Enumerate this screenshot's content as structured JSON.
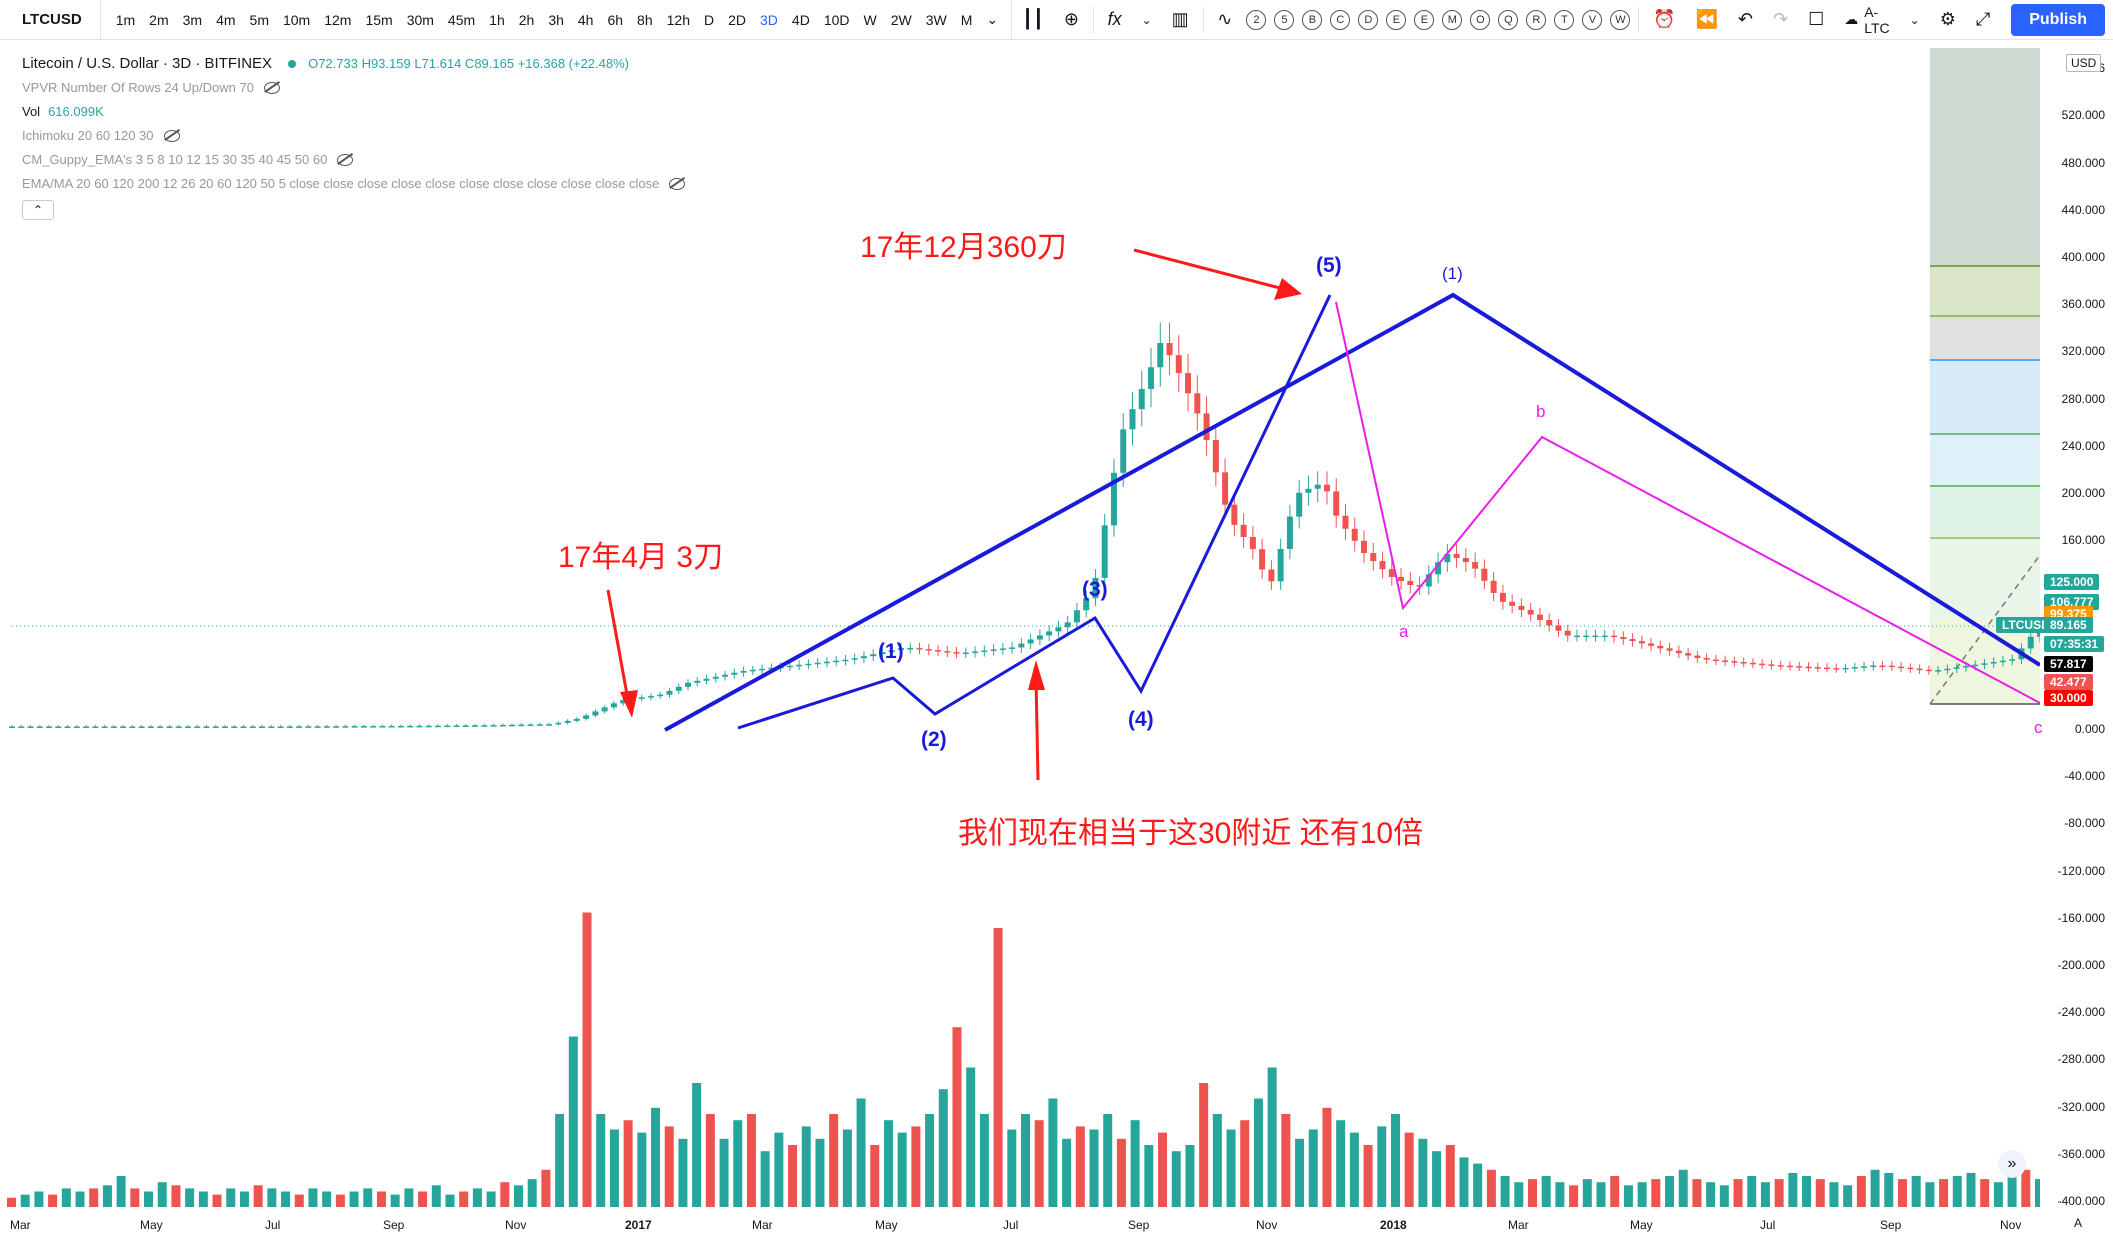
{
  "toolbar": {
    "symbol": "LTCUSD",
    "timeframes": [
      "1m",
      "2m",
      "3m",
      "4m",
      "5m",
      "10m",
      "12m",
      "15m",
      "30m",
      "45m",
      "1h",
      "2h",
      "3h",
      "4h",
      "6h",
      "8h",
      "12h",
      "D",
      "2D",
      "3D",
      "4D",
      "10D",
      "W",
      "2W",
      "3W",
      "M"
    ],
    "active_timeframe": "3D",
    "circle_letters": [
      "2",
      "5",
      "B",
      "C",
      "D",
      "E",
      "E",
      "M",
      "O",
      "Q",
      "R",
      "T",
      "V",
      "W"
    ],
    "layout_name": "A-LTC",
    "publish_label": "Publish"
  },
  "legend": {
    "title": "Litecoin / U.S. Dollar · 3D · BITFINEX",
    "ohlc": "O72.733 H93.159 L71.614 C89.165 +16.368 (+22.48%)",
    "vpvr": "VPVR Number Of Rows 24 Up/Down 70",
    "vol_label": "Vol",
    "vol_value": "616.099K",
    "ichimoku": "Ichimoku 20 60 120 30",
    "guppy": "CM_Guppy_EMA's 3 5 8 10 12 15 30 35 40 45 50 60",
    "ema": "EMA/MA 20 60 120 200 12 26 20 60 120 50 5 close close close close close close close close close close close",
    "collapse_icon": "chevron-up-icon"
  },
  "price_axis": {
    "currency": "USD",
    "top_partial": "56",
    "ticks": [
      "520.000",
      "480.000",
      "440.000",
      "400.000",
      "360.000",
      "320.000",
      "280.000",
      "240.000",
      "200.000",
      "160.000",
      "0.000",
      "-40.000",
      "-80.000",
      "-120.000",
      "-160.000",
      "-200.000",
      "-240.000",
      "-280.000",
      "-320.000",
      "-360.000",
      "-400.000"
    ],
    "labels": [
      {
        "text": "125.000",
        "color": "#26a69a"
      },
      {
        "text": "106.777",
        "color": "#26a69a"
      },
      {
        "text": "99.375",
        "color": "#ff9800"
      },
      {
        "text": "LTCUSD",
        "color": "#26a69a"
      },
      {
        "text": "89.165",
        "color": "#26a69a"
      },
      {
        "text": "07:35:31",
        "color": "#26a69a"
      },
      {
        "text": "57.817",
        "color": "#000000"
      },
      {
        "text": "42.477",
        "color": "#ef5350"
      },
      {
        "text": "30.000",
        "color": "#ff0000"
      }
    ]
  },
  "time_axis": {
    "ticks": [
      "Mar",
      "May",
      "Jul",
      "Sep",
      "Nov",
      "2017",
      "Mar",
      "May",
      "Jul",
      "Sep",
      "Nov",
      "2018",
      "Mar",
      "May",
      "Jul",
      "Sep",
      "Nov"
    ],
    "scroll_icon": "chevron-right-double-icon"
  },
  "annotations": {
    "dec_2017": "17年12月360刀",
    "apr_2017": "17年4月 3刀",
    "now_note": "我们现在相当于这30附近 还有10倍"
  },
  "waves": {
    "big": [
      "(1)",
      "(2)",
      "(3)",
      "(4)",
      "(5)"
    ],
    "top": "(1)",
    "abc": [
      "a",
      "b",
      "c"
    ]
  },
  "chart_data": {
    "type": "candlestick",
    "ylim": [
      -400,
      560
    ],
    "series_color_up": "#26a69a",
    "series_color_down": "#ef5350",
    "price_path": [
      [
        0,
        3
      ],
      [
        20,
        3
      ],
      [
        30,
        3.5
      ],
      [
        35,
        4
      ],
      [
        40,
        5
      ],
      [
        42,
        10
      ],
      [
        45,
        25
      ],
      [
        48,
        30
      ],
      [
        50,
        40
      ],
      [
        52,
        45
      ],
      [
        54,
        50
      ],
      [
        58,
        55
      ],
      [
        62,
        60
      ],
      [
        66,
        70
      ],
      [
        70,
        65
      ],
      [
        74,
        70
      ],
      [
        78,
        90
      ],
      [
        80,
        120
      ],
      [
        82,
        250
      ],
      [
        84,
        300
      ],
      [
        85,
        330
      ],
      [
        86,
        310
      ],
      [
        88,
        260
      ],
      [
        90,
        180
      ],
      [
        92,
        150
      ],
      [
        93,
        120
      ],
      [
        95,
        200
      ],
      [
        97,
        210
      ],
      [
        98,
        180
      ],
      [
        100,
        150
      ],
      [
        102,
        130
      ],
      [
        104,
        120
      ],
      [
        106,
        150
      ],
      [
        108,
        140
      ],
      [
        110,
        110
      ],
      [
        112,
        100
      ],
      [
        115,
        80
      ],
      [
        118,
        80
      ],
      [
        120,
        75
      ],
      [
        125,
        60
      ],
      [
        130,
        55
      ],
      [
        135,
        52
      ],
      [
        138,
        55
      ],
      [
        142,
        50
      ],
      [
        145,
        55
      ],
      [
        148,
        60
      ],
      [
        150,
        89
      ]
    ],
    "volume": [
      3,
      4,
      5,
      4,
      6,
      5,
      6,
      7,
      10,
      6,
      5,
      8,
      7,
      6,
      5,
      4,
      6,
      5,
      7,
      6,
      5,
      4,
      6,
      5,
      4,
      5,
      6,
      5,
      4,
      6,
      5,
      7,
      4,
      5,
      6,
      5,
      8,
      7,
      9,
      12,
      30,
      55,
      95,
      30,
      25,
      28,
      24,
      32,
      26,
      22,
      40,
      30,
      22,
      28,
      30,
      18,
      24,
      20,
      26,
      22,
      30,
      25,
      35,
      20,
      28,
      24,
      26,
      30,
      38,
      58,
      45,
      30,
      90,
      25,
      30,
      28,
      35,
      22,
      26,
      25,
      30,
      22,
      28,
      20,
      24,
      18,
      20,
      40,
      30,
      25,
      28,
      35,
      45,
      30,
      22,
      25,
      32,
      28,
      24,
      20,
      26,
      30,
      24,
      22,
      18,
      20,
      16,
      14,
      12,
      10,
      8,
      9,
      10,
      8,
      7,
      9,
      8,
      10,
      7,
      8,
      9,
      10,
      12,
      9,
      8,
      7,
      9,
      10,
      8,
      9,
      11,
      10,
      9,
      8,
      7,
      10,
      12,
      11,
      9,
      10,
      8,
      9,
      10,
      11,
      9,
      8,
      10,
      12,
      9
    ]
  }
}
